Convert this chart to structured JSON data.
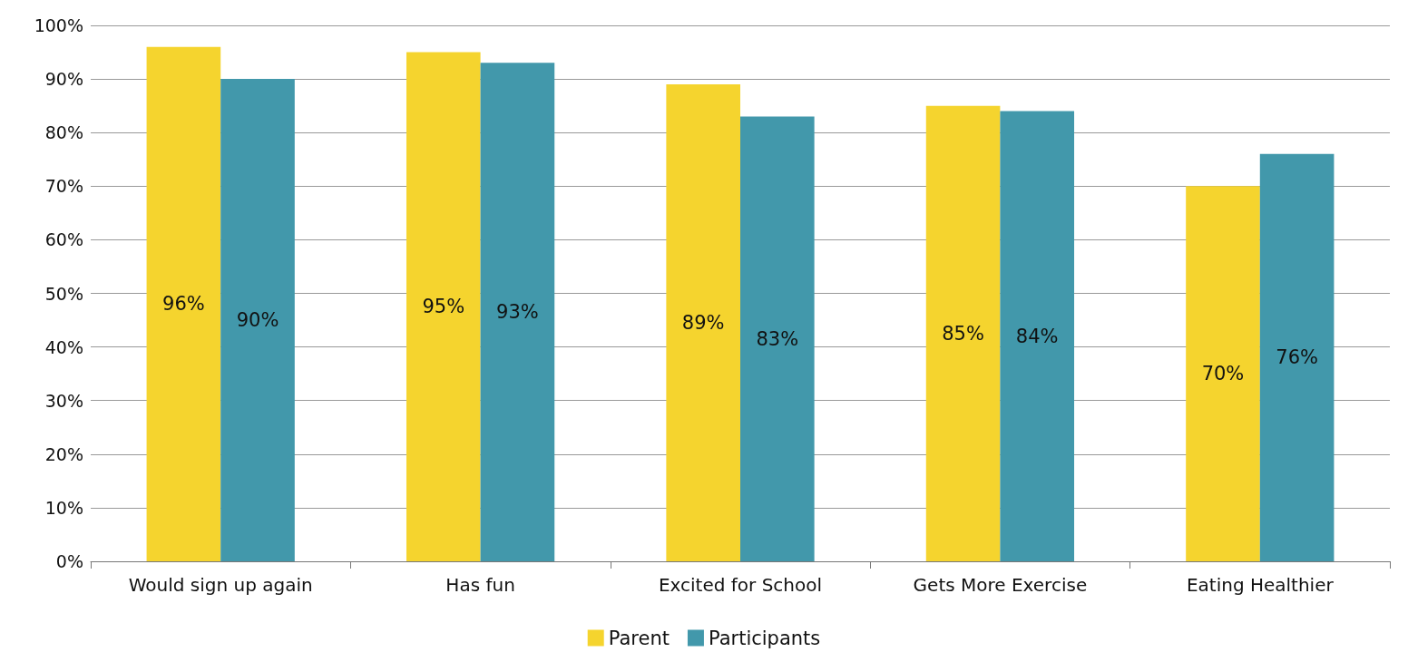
{
  "chart_data": {
    "type": "bar",
    "categories": [
      "Would sign up again",
      "Has fun",
      "Excited for School",
      "Gets More Exercise",
      "Eating Healthier"
    ],
    "series": [
      {
        "name": "Parent",
        "color": "#f5d42e",
        "values": [
          96,
          95,
          89,
          85,
          70
        ],
        "value_labels": [
          "96%",
          "95%",
          "89%",
          "85%",
          "70%"
        ]
      },
      {
        "name": "Participants",
        "color": "#4298ab",
        "values": [
          90,
          93,
          83,
          84,
          76
        ],
        "value_labels": [
          "90%",
          "93%",
          "83%",
          "84%",
          "76%"
        ]
      }
    ],
    "ylim": [
      0,
      100
    ],
    "yticks": [
      {
        "value": 0,
        "label": "0%"
      },
      {
        "value": 10,
        "label": "10%"
      },
      {
        "value": 20,
        "label": "20%"
      },
      {
        "value": 30,
        "label": "30%"
      },
      {
        "value": 40,
        "label": "40%"
      },
      {
        "value": 50,
        "label": "50%"
      },
      {
        "value": 60,
        "label": "60%"
      },
      {
        "value": 70,
        "label": "70%"
      },
      {
        "value": 80,
        "label": "80%"
      },
      {
        "value": 90,
        "label": "90%"
      },
      {
        "value": 100,
        "label": "100%"
      }
    ],
    "grid": "y",
    "legend": "bottom"
  }
}
